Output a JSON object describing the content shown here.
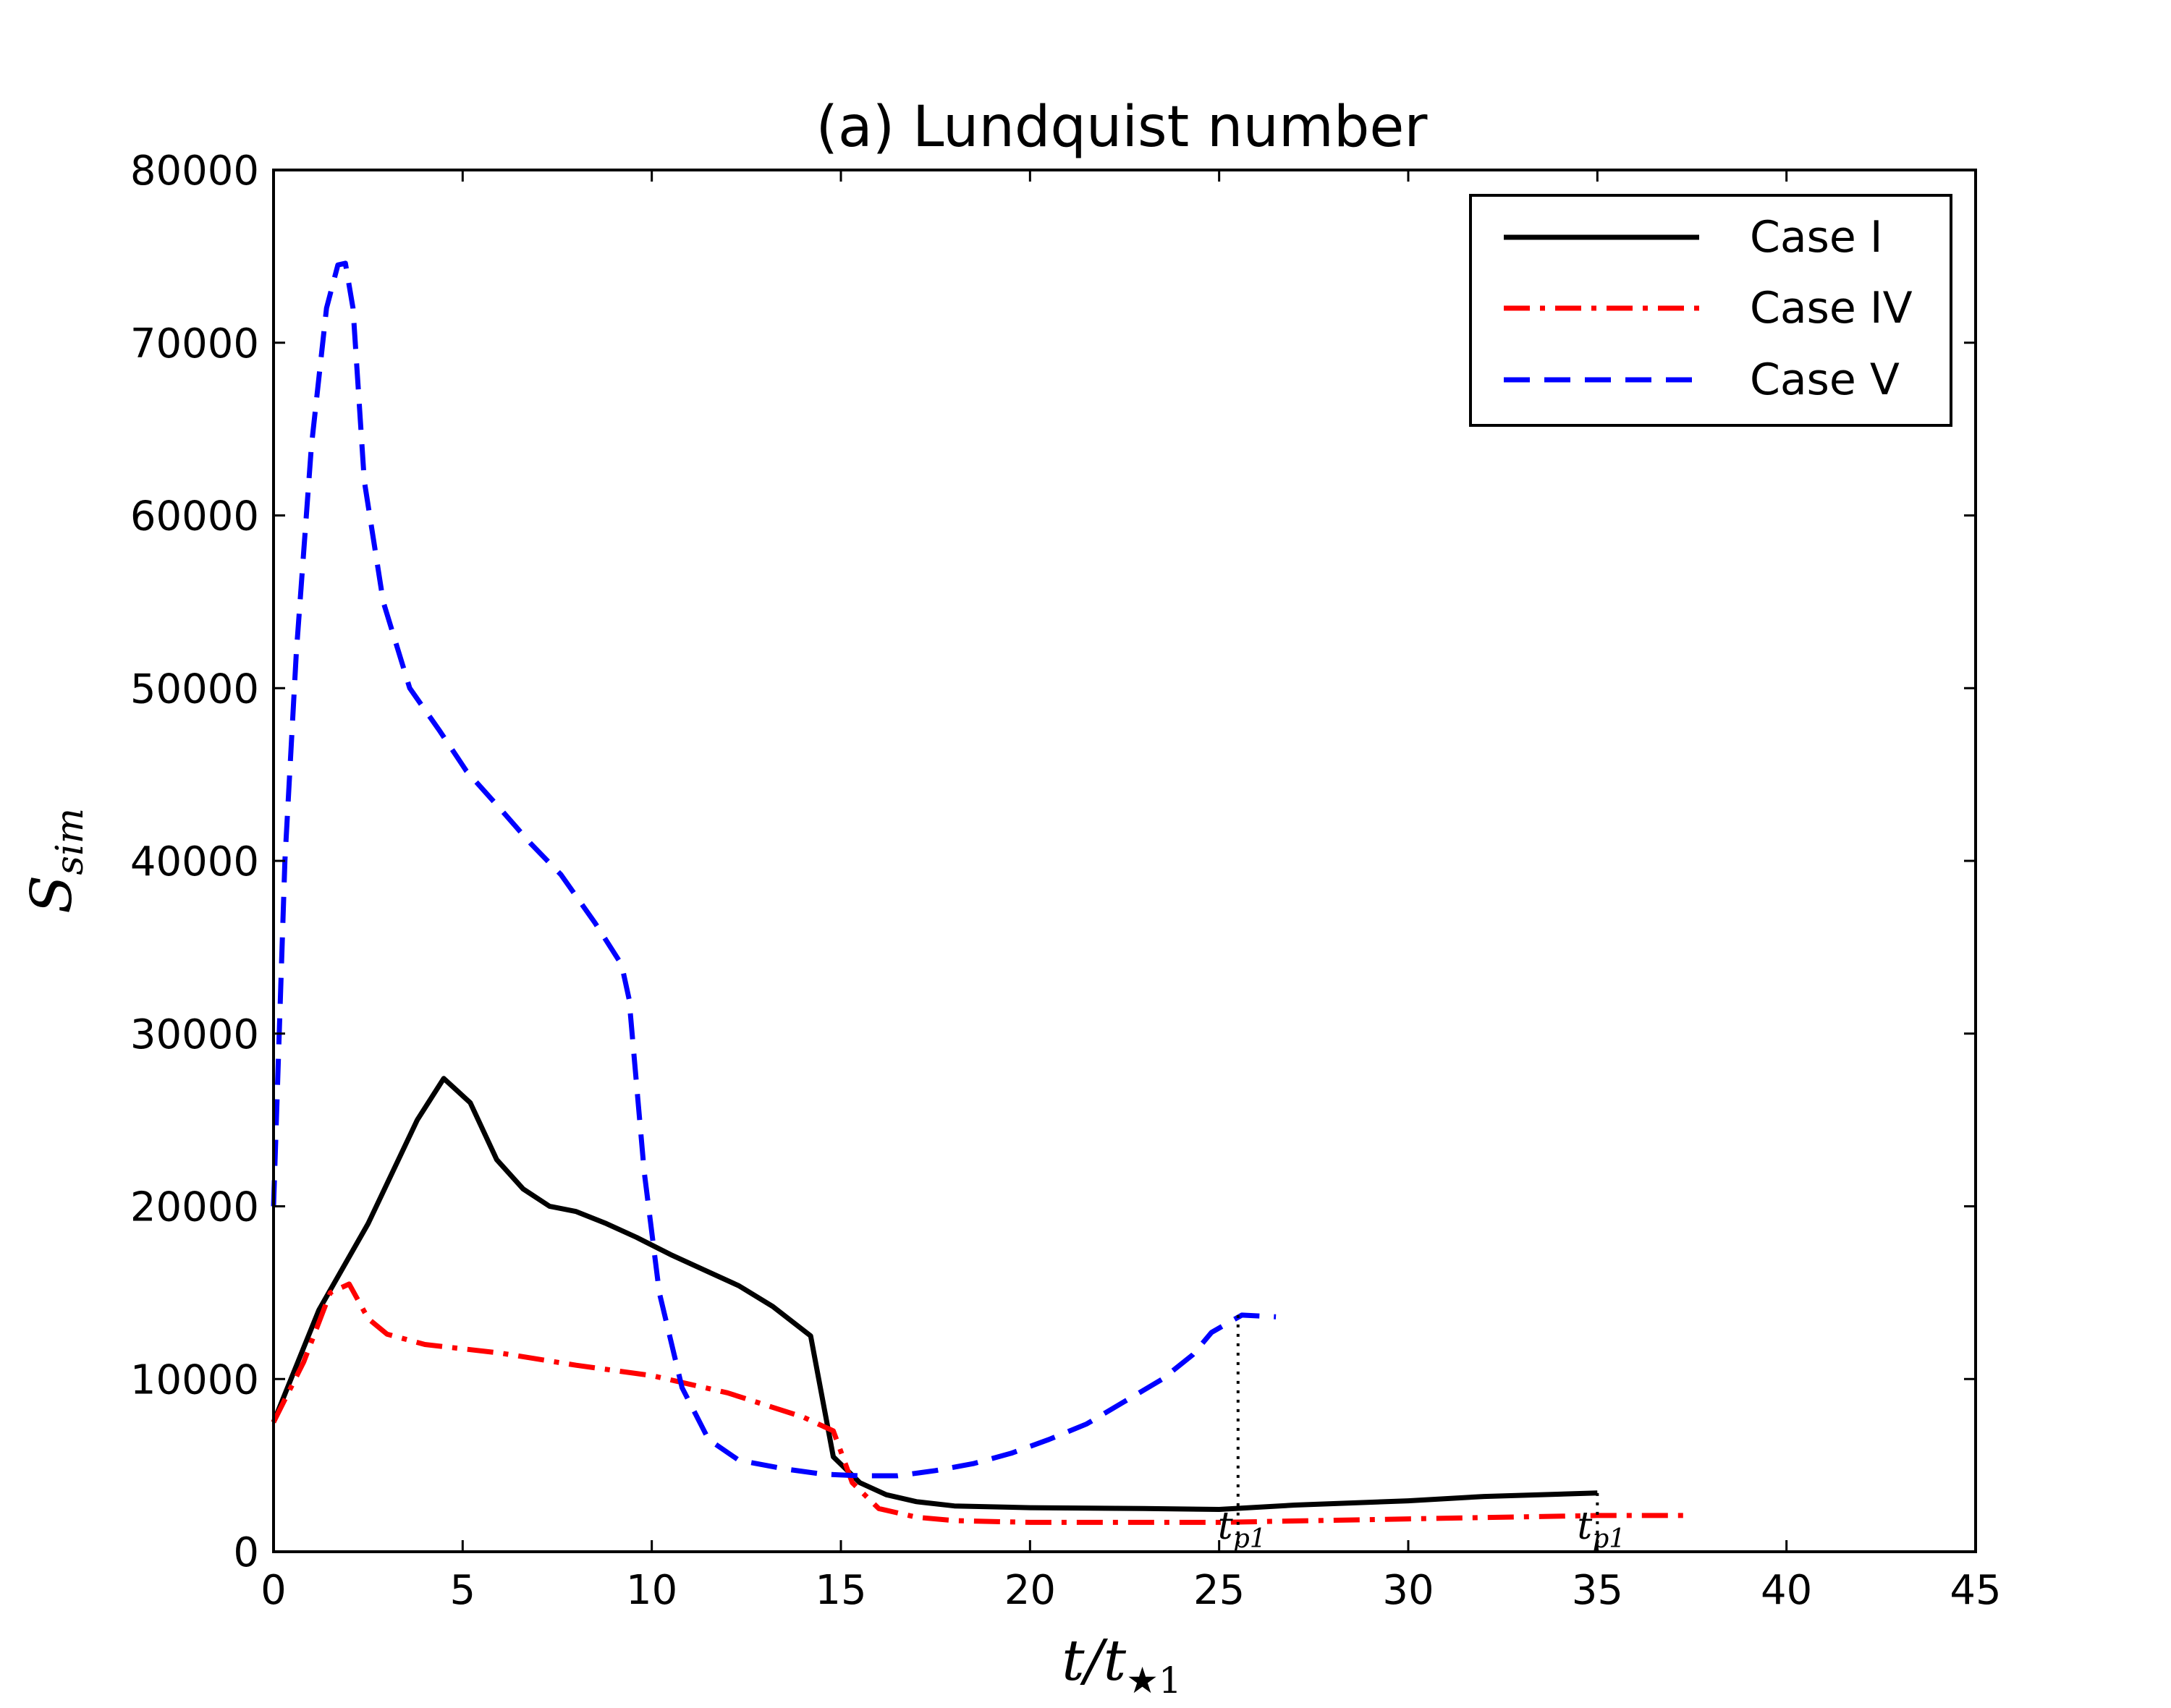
{
  "chart_data": {
    "type": "line",
    "title": "(a) Lundquist number",
    "xlabel": "t/t★1",
    "ylabel": "S_sim",
    "xlim": [
      0,
      45
    ],
    "ylim": [
      0,
      80000
    ],
    "xticks": [
      0,
      5,
      10,
      15,
      20,
      25,
      30,
      35,
      40,
      45
    ],
    "yticks": [
      0,
      10000,
      20000,
      30000,
      40000,
      50000,
      60000,
      70000,
      80000
    ],
    "legend_position": "top-right",
    "series": [
      {
        "name": "Case I",
        "color": "#000000",
        "style": "solid",
        "points": [
          [
            0,
            7500
          ],
          [
            1.2,
            14000
          ],
          [
            2.5,
            19000
          ],
          [
            3.8,
            25000
          ],
          [
            4.5,
            27400
          ],
          [
            5.2,
            26000
          ],
          [
            5.9,
            22700
          ],
          [
            6.6,
            21000
          ],
          [
            7.3,
            20000
          ],
          [
            8,
            19700
          ],
          [
            8.8,
            19000
          ],
          [
            9.6,
            18200
          ],
          [
            10.5,
            17200
          ],
          [
            11.4,
            16300
          ],
          [
            12.3,
            15400
          ],
          [
            13.2,
            14200
          ],
          [
            14.2,
            12500
          ],
          [
            14.8,
            5500
          ],
          [
            15.5,
            4000
          ],
          [
            16.2,
            3300
          ],
          [
            17,
            2900
          ],
          [
            18,
            2650
          ],
          [
            20,
            2550
          ],
          [
            23,
            2500
          ],
          [
            25,
            2450
          ],
          [
            27,
            2700
          ],
          [
            30,
            2950
          ],
          [
            32,
            3200
          ],
          [
            35,
            3400
          ]
        ]
      },
      {
        "name": "Case IV",
        "color": "#ff0000",
        "style": "dashdot",
        "points": [
          [
            0,
            7500
          ],
          [
            0.8,
            11000
          ],
          [
            1.5,
            15000
          ],
          [
            2,
            15500
          ],
          [
            2.5,
            13500
          ],
          [
            3,
            12600
          ],
          [
            4,
            12000
          ],
          [
            6,
            11500
          ],
          [
            8,
            10800
          ],
          [
            10,
            10200
          ],
          [
            11,
            9700
          ],
          [
            12,
            9200
          ],
          [
            13,
            8500
          ],
          [
            14,
            7800
          ],
          [
            14.8,
            7000
          ],
          [
            15.3,
            4000
          ],
          [
            16,
            2500
          ],
          [
            17,
            2000
          ],
          [
            18,
            1800
          ],
          [
            20,
            1700
          ],
          [
            25,
            1700
          ],
          [
            30,
            1900
          ],
          [
            35,
            2100
          ],
          [
            37.5,
            2100
          ]
        ]
      },
      {
        "name": "Case V",
        "color": "#0000ff",
        "style": "dashed",
        "points": [
          [
            0,
            20000
          ],
          [
            0.3,
            40000
          ],
          [
            0.6,
            52000
          ],
          [
            1,
            64000
          ],
          [
            1.4,
            72000
          ],
          [
            1.7,
            74500
          ],
          [
            1.9,
            74600
          ],
          [
            2.1,
            72000
          ],
          [
            2.4,
            62000
          ],
          [
            2.9,
            55000
          ],
          [
            3.6,
            50000
          ],
          [
            4.4,
            47500
          ],
          [
            5.1,
            45200
          ],
          [
            6,
            43000
          ],
          [
            6.8,
            41000
          ],
          [
            7.6,
            39200
          ],
          [
            8.5,
            36400
          ],
          [
            9.2,
            34000
          ],
          [
            9.4,
            32000
          ],
          [
            9.8,
            22000
          ],
          [
            10.2,
            15000
          ],
          [
            10.8,
            9500
          ],
          [
            11.5,
            6500
          ],
          [
            12.3,
            5300
          ],
          [
            13.5,
            4800
          ],
          [
            14.5,
            4500
          ],
          [
            15.5,
            4400
          ],
          [
            16.5,
            4400
          ],
          [
            17.5,
            4700
          ],
          [
            18.5,
            5100
          ],
          [
            19.5,
            5700
          ],
          [
            20.5,
            6500
          ],
          [
            21.5,
            7400
          ],
          [
            22.5,
            8700
          ],
          [
            23.5,
            10000
          ],
          [
            24.3,
            11400
          ],
          [
            24.8,
            12700
          ],
          [
            25.6,
            13700
          ],
          [
            26.5,
            13600
          ]
        ]
      }
    ],
    "annotations": [
      {
        "text": "t_p1",
        "x": 25.5
      },
      {
        "text": "t_p1",
        "x": 35
      }
    ]
  }
}
